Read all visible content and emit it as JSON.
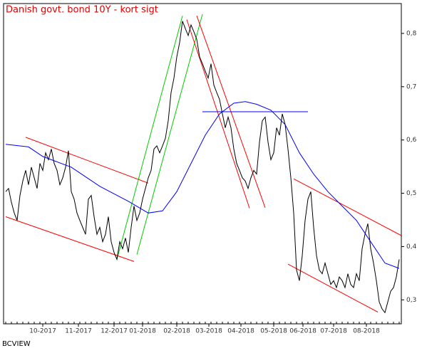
{
  "chart_data": {
    "type": "line",
    "title": "Danish govt. bond 10Y - kort sigt",
    "source": "BCVIEW",
    "xlim": [
      0,
      138
    ],
    "ylim": [
      0.255,
      0.856
    ],
    "xticks": [
      {
        "value": 13,
        "label": "10-2017"
      },
      {
        "value": 25.5,
        "label": "11-2017"
      },
      {
        "value": 38,
        "label": "12-2017"
      },
      {
        "value": 48,
        "label": "01-2018"
      },
      {
        "value": 60,
        "label": "02-2018"
      },
      {
        "value": 71.25,
        "label": "03-2018"
      },
      {
        "value": 82.5,
        "label": "04-2018"
      },
      {
        "value": 94,
        "label": "05-2018"
      },
      {
        "value": 104.25,
        "label": "06-2018"
      },
      {
        "value": 115,
        "label": "07-2018"
      },
      {
        "value": 126.5,
        "label": "08-2018"
      }
    ],
    "yticks": [
      {
        "value": 0.3,
        "label": "0,3"
      },
      {
        "value": 0.4,
        "label": "0,4"
      },
      {
        "value": 0.5,
        "label": "0,5"
      },
      {
        "value": 0.6,
        "label": "0,6"
      },
      {
        "value": 0.7,
        "label": "0,7"
      },
      {
        "value": 0.8,
        "label": "0,8"
      }
    ],
    "series": [
      {
        "color": "#000000",
        "values": [
          0.503,
          0.509,
          0.483,
          0.463,
          0.449,
          0.496,
          0.523,
          0.543,
          0.516,
          0.549,
          0.529,
          0.509,
          0.556,
          0.543,
          0.576,
          0.563,
          0.583,
          0.556,
          0.543,
          0.516,
          0.529,
          0.549,
          0.58,
          0.503,
          0.489,
          0.463,
          0.449,
          0.436,
          0.423,
          0.489,
          0.496,
          0.456,
          0.423,
          0.436,
          0.409,
          0.423,
          0.456,
          0.409,
          0.389,
          0.376,
          0.409,
          0.396,
          0.416,
          0.389,
          0.436,
          0.476,
          0.449,
          0.463,
          0.489,
          0.509,
          0.529,
          0.543,
          0.583,
          0.589,
          0.576,
          0.589,
          0.603,
          0.636,
          0.689,
          0.716,
          0.756,
          0.783,
          0.823,
          0.809,
          0.796,
          0.816,
          0.803,
          0.789,
          0.756,
          0.743,
          0.729,
          0.716,
          0.743,
          0.703,
          0.689,
          0.676,
          0.649,
          0.623,
          0.643,
          0.623,
          0.583,
          0.556,
          0.543,
          0.529,
          0.523,
          0.509,
          0.529,
          0.543,
          0.536,
          0.596,
          0.636,
          0.643,
          0.596,
          0.563,
          0.576,
          0.623,
          0.609,
          0.649,
          0.629,
          0.583,
          0.529,
          0.463,
          0.356,
          0.336,
          0.383,
          0.449,
          0.489,
          0.503,
          0.436,
          0.383,
          0.356,
          0.349,
          0.369,
          0.349,
          0.329,
          0.336,
          0.323,
          0.343,
          0.336,
          0.323,
          0.349,
          0.329,
          0.323,
          0.349,
          0.336,
          0.396,
          0.423,
          0.443,
          0.396,
          0.369,
          0.336,
          0.296,
          0.283,
          0.276,
          0.296,
          0.316,
          0.323,
          0.343,
          0.376
        ]
      },
      {
        "color": "#0000ff",
        "x": [
          0,
          8,
          13,
          23,
          33,
          43,
          50,
          55,
          60,
          65,
          70,
          75,
          80,
          84,
          88,
          93,
          98,
          103,
          108,
          113,
          118,
          123,
          128,
          133,
          138
        ],
        "values": [
          0.592,
          0.587,
          0.569,
          0.549,
          0.513,
          0.485,
          0.463,
          0.467,
          0.503,
          0.556,
          0.609,
          0.649,
          0.669,
          0.672,
          0.667,
          0.656,
          0.629,
          0.576,
          0.536,
          0.503,
          0.476,
          0.449,
          0.409,
          0.369,
          0.359
        ]
      }
    ],
    "trend_lines": [
      {
        "color": "#ff0000",
        "x": [
          7,
          50
        ],
        "values": [
          0.605,
          0.519
        ]
      },
      {
        "color": "#ff0000",
        "x": [
          0,
          45
        ],
        "values": [
          0.456,
          0.372
        ]
      },
      {
        "color": "#00cc00",
        "x": [
          39,
          62
        ],
        "values": [
          0.376,
          0.833
        ]
      },
      {
        "color": "#00cc00",
        "x": [
          46,
          69
        ],
        "values": [
          0.385,
          0.836
        ]
      },
      {
        "color": "#ff0000",
        "x": [
          63.5,
          85.5
        ],
        "values": [
          0.826,
          0.472
        ]
      },
      {
        "color": "#ff0000",
        "x": [
          67,
          91
        ],
        "values": [
          0.833,
          0.473
        ]
      },
      {
        "color": "#0000ff",
        "x": [
          69,
          106
        ],
        "values": [
          0.653,
          0.653
        ]
      },
      {
        "color": "#ff0000",
        "x": [
          101,
          139
        ],
        "values": [
          0.527,
          0.42
        ]
      },
      {
        "color": "#ff0000",
        "x": [
          99,
          130.5
        ],
        "values": [
          0.367,
          0.277
        ]
      }
    ]
  }
}
